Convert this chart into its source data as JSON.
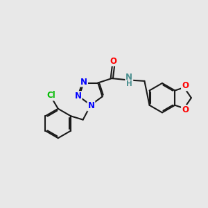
{
  "background_color": "#e8e8e8",
  "atom_colors": {
    "N": "#0000ff",
    "O": "#ff0000",
    "Cl": "#00bb00",
    "C": "#000000",
    "H": "#4a8f8f"
  },
  "bond_color": "#1a1a1a",
  "bond_width": 1.5,
  "figsize": [
    3.0,
    3.0
  ],
  "dpi": 100
}
